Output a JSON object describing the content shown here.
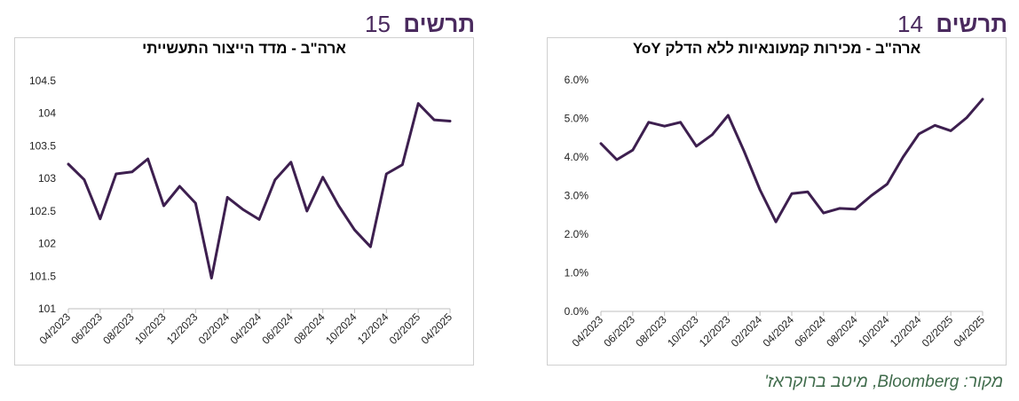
{
  "figures": [
    {
      "word": "תרשים",
      "number": "14",
      "chart_data": {
        "type": "line",
        "title": "ארה\"ב - מכירות קמעונאיות ללא הדלק YoY",
        "x": [
          "04/2023",
          "05/2023",
          "06/2023",
          "07/2023",
          "08/2023",
          "09/2023",
          "10/2023",
          "11/2023",
          "12/2023",
          "01/2024",
          "02/2024",
          "03/2024",
          "04/2024",
          "05/2024",
          "06/2024",
          "07/2024",
          "08/2024",
          "09/2024",
          "10/2024",
          "11/2024",
          "12/2024",
          "01/2025",
          "02/2025",
          "03/2025",
          "04/2025"
        ],
        "xtick_labels": [
          "04/2023",
          "06/2023",
          "08/2023",
          "10/2023",
          "12/2023",
          "02/2024",
          "04/2024",
          "06/2024",
          "08/2024",
          "10/2024",
          "12/2024",
          "02/2025",
          "04/2025"
        ],
        "values": [
          4.35,
          3.93,
          4.18,
          4.9,
          4.8,
          4.9,
          4.28,
          4.58,
          5.08,
          4.15,
          3.15,
          2.32,
          3.05,
          3.1,
          2.55,
          2.67,
          2.65,
          3.0,
          3.3,
          4.0,
          4.6,
          4.82,
          4.68,
          5.02,
          5.5
        ],
        "ylim": [
          0,
          6
        ],
        "yticks": [
          "0.0%",
          "1.0%",
          "2.0%",
          "3.0%",
          "4.0%",
          "5.0%",
          "6.0%"
        ],
        "line_color": "#3d1f4f",
        "grid": false,
        "legend": "none"
      }
    },
    {
      "word": "תרשים",
      "number": "15",
      "chart_data": {
        "type": "line",
        "title": "ארה\"ב - מדד הייצור התעשייתי",
        "x": [
          "04/2023",
          "05/2023",
          "06/2023",
          "07/2023",
          "08/2023",
          "09/2023",
          "10/2023",
          "11/2023",
          "12/2023",
          "01/2024",
          "02/2024",
          "03/2024",
          "04/2024",
          "05/2024",
          "06/2024",
          "07/2024",
          "08/2024",
          "09/2024",
          "10/2024",
          "11/2024",
          "12/2024",
          "01/2025",
          "02/2025",
          "03/2025",
          "04/2025"
        ],
        "xtick_labels": [
          "04/2023",
          "06/2023",
          "08/2023",
          "10/2023",
          "12/2023",
          "02/2024",
          "04/2024",
          "06/2024",
          "08/2024",
          "10/2024",
          "12/2024",
          "02/2025",
          "04/2025"
        ],
        "values": [
          103.22,
          102.98,
          102.38,
          103.07,
          103.1,
          103.3,
          102.58,
          102.88,
          102.62,
          101.47,
          102.71,
          102.52,
          102.37,
          102.98,
          103.25,
          102.5,
          103.02,
          102.58,
          102.21,
          101.95,
          103.07,
          103.21,
          104.15,
          103.9,
          103.88
        ],
        "ylim": [
          101,
          104.5
        ],
        "yticks": [
          "101",
          "101.5",
          "102",
          "102.5",
          "103",
          "103.5",
          "104",
          "104.5"
        ],
        "line_color": "#3d1f4f",
        "grid": false,
        "legend": "none"
      }
    }
  ],
  "source": "מקור: Bloomberg, מיטב ברוקראז'"
}
